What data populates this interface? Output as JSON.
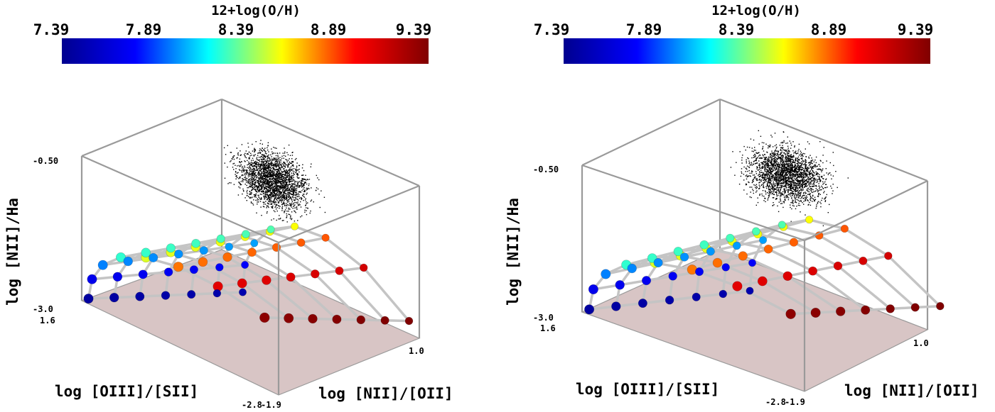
{
  "colorbar": {
    "title": "12+log(O/H)",
    "ticks": [
      "7.39",
      "7.89",
      "8.39",
      "8.89",
      "9.39"
    ],
    "min": 7.39,
    "max": 9.39,
    "colormap": [
      "#00008f",
      "#0000ff",
      "#00ffff",
      "#ffff00",
      "#ff0000",
      "#800000"
    ]
  },
  "chart_data": [
    {
      "type": "scatter",
      "projection": "3d",
      "panel": "left",
      "colorbar_title": "12+log(O/H)",
      "axes": {
        "x": {
          "label": "log [OIII]/[SII]",
          "tick_start": "1.6",
          "tick_end": "-2.8",
          "range": [
            1.6,
            -2.8
          ]
        },
        "y": {
          "label": "log [NII]/[OII]",
          "tick_start": "-1.9",
          "tick_end": "1.0",
          "range": [
            -1.9,
            1.0
          ]
        },
        "z": {
          "label": "log [NII]/Ha",
          "tick_low": "-3.0",
          "tick_high": "-0.50",
          "range": [
            -3.0,
            -0.5
          ]
        }
      },
      "series": [
        {
          "name": "observed galaxies",
          "color": "#000000",
          "note": "dense black point cloud"
        },
        {
          "name": "photoionization model grid",
          "color_by": "12+log(O/H)"
        }
      ]
    },
    {
      "type": "scatter",
      "projection": "3d",
      "panel": "right",
      "colorbar_title": "12+log(O/H)",
      "axes": {
        "x": {
          "label": "log [OIII]/[SII]",
          "tick_start": "1.6",
          "tick_end": "-2.8",
          "range": [
            1.6,
            -2.8
          ]
        },
        "y": {
          "label": "log [NII]/[OII]",
          "tick_start": "-1.9",
          "tick_end": "1.0",
          "range": [
            -1.9,
            1.0
          ]
        },
        "z": {
          "label": "log [NII]/Ha",
          "tick_low": "-3.0",
          "tick_high": "-0.50",
          "range": [
            -3.0,
            -0.5
          ]
        }
      },
      "series": [
        {
          "name": "observed galaxies",
          "color": "#000000",
          "note": "dense black point cloud"
        },
        {
          "name": "photoionization model grid",
          "color_by": "12+log(O/H)"
        }
      ]
    }
  ]
}
